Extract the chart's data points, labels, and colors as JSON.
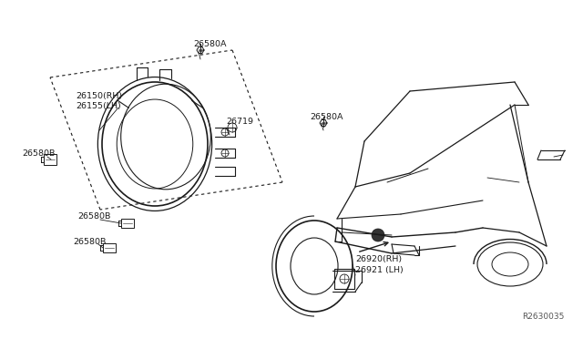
{
  "bg_color": "#ffffff",
  "line_color": "#1a1a1a",
  "fig_width": 6.4,
  "fig_height": 3.72,
  "dpi": 100,
  "ref_label": "R2630035",
  "parts": {
    "26580A_1": "26580A",
    "26580A_2": "26580A",
    "26150_rh": "26150(RH)",
    "26155_lh": "26155(LH)",
    "26719": "26719",
    "26580B_1": "26580B",
    "26580B_2": "26580B",
    "26580B_3": "26580B",
    "26920_rh": "26920(RH)",
    "26921_lh": "26921(LH)"
  }
}
